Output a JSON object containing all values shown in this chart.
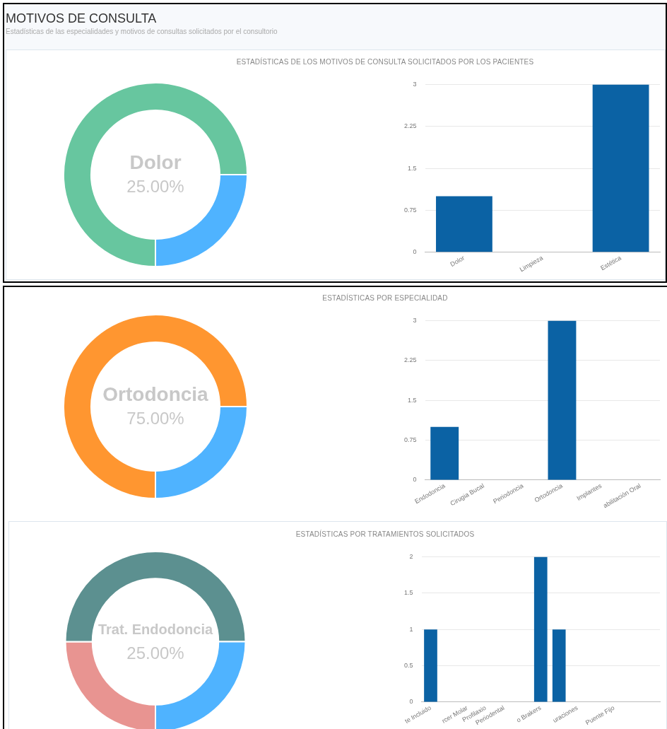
{
  "chart_data": [
    {
      "type": "other",
      "title": "MOTIVOS DE CONSULTA",
      "subtitle": "Estadísticas de las especialidades y motivos de consultas solicitados por el consultorio"
    },
    {
      "type": "donut",
      "categories": [
        null,
        null
      ],
      "values": [
        75,
        25
      ],
      "colors": [
        "#67c69f",
        "#4fb3ff"
      ],
      "annotations": [
        "Dolor",
        "25.00%"
      ]
    },
    {
      "type": "bar",
      "title": "ESTADÍSTICAS DE LOS MOTIVOS DE CONSULTA SOLICITADOS POR LOS PACIENTES",
      "categories": [
        "Dolor",
        "Limpieza",
        "Estética"
      ],
      "values": [
        1,
        0,
        3
      ],
      "color": "#0b62a4",
      "ylim": [
        0,
        3
      ],
      "yticks": [
        0,
        0.75,
        1.5,
        2.25,
        3
      ],
      "grid": "y",
      "legend": false
    },
    {
      "type": "donut",
      "categories": [
        null,
        null
      ],
      "values": [
        75,
        25
      ],
      "colors": [
        "#ff9630",
        "#4fb3ff"
      ],
      "annotations": [
        "Ortodoncia",
        "75.00%"
      ]
    },
    {
      "type": "bar",
      "title": "ESTADÍSTICAS POR ESPECIALIDAD",
      "categories": [
        "Endodoncia",
        "Cirugia Bucal",
        "Periodoncia",
        "Ortodoncia",
        "Implantes",
        "abilitación Oral"
      ],
      "values": [
        1,
        0,
        0,
        3,
        0,
        0
      ],
      "color": "#0b62a4",
      "ylim": [
        0,
        3
      ],
      "yticks": [
        0,
        0.75,
        1.5,
        2.25,
        3
      ],
      "grid": "y",
      "legend": false
    },
    {
      "type": "donut",
      "categories": [
        null,
        null,
        null
      ],
      "values": [
        25,
        50,
        25
      ],
      "colors": [
        "#e89491",
        "#5c9090",
        "#4fb3ff"
      ],
      "annotations": [
        "Trat. Endodoncia",
        "25.00%"
      ]
    },
    {
      "type": "bar",
      "title": "ESTADÍSTICAS POR TRATAMIENTOS SOLICITADOS",
      "categories": [
        "te Incluido",
        null,
        "rcer Molar",
        "Profilaxio",
        "Periodental",
        null,
        "o Brakers",
        null,
        "uraciones",
        null,
        "Puente Fijo",
        null,
        null
      ],
      "values": [
        1,
        0,
        0,
        0,
        0,
        0,
        2,
        1,
        0,
        0,
        0,
        0,
        0
      ],
      "color": "#0b62a4",
      "ylim": [
        0,
        2
      ],
      "yticks": [
        0,
        0.5,
        1,
        1.5,
        2
      ],
      "grid": "y",
      "legend": false
    }
  ]
}
